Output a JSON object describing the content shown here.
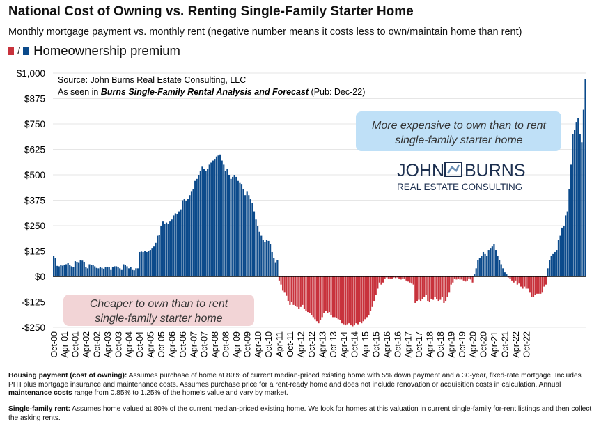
{
  "title": "National Cost of Owning vs. Renting Single-Family Starter Home",
  "subtitle": "Monthly mortgage payment vs. monthly rent (negative number means it costs less to own/maintain home than rent)",
  "legend": {
    "separator": "/",
    "label": "Homeownership premium"
  },
  "source": {
    "line1": "Source: John Burns Real Estate Consulting, LLC",
    "line2_prefix": "As seen in ",
    "line2_pub": "Burns Single-Family Rental Analysis and Forecast",
    "line2_suffix": " (Pub: Dec-22)"
  },
  "logo": {
    "line1a": "JOHN",
    "line1b": "BURNS",
    "line2": "REAL ESTATE CONSULTING"
  },
  "annotations": {
    "expensive": [
      "More expensive to own than to rent",
      "single-family starter home"
    ],
    "cheaper": [
      "Cheaper to own than to rent",
      "single-family starter home"
    ]
  },
  "footnotes": {
    "housing_label": "Housing payment (cost of owning):",
    "housing_text": " Assumes purchase of home at 80% of current median-priced existing home with 5% down payment and a 30-year, fixed-rate mortgage. Includes PITI plus mortgage insurance and maintenance costs. Assumes purchase price for a rent-ready home and does not include renovation or acquisition costs in calculation. Annual ",
    "maint_label": "maintenance costs",
    "maint_text": " range from 0.85% to 1.25% of the home's value and vary by market.",
    "rent_label": "Single-family rent:",
    "rent_text": " Assumes home valued at 80% of the current median-priced existing home. We look for homes at this valuation in current single-family for-rent listings and then collect the asking rents."
  },
  "colors": {
    "positive": "#0b4a8b",
    "negative": "#c8323c",
    "annot_blue": "#bfe0f7",
    "annot_red": "#f2d4d6"
  },
  "chart_data": {
    "type": "bar",
    "start": "Oct-00",
    "end": "Oct-22",
    "frequency": "monthly",
    "ylim": [
      -250,
      1000
    ],
    "yticks": [
      -250,
      -125,
      0,
      125,
      250,
      375,
      500,
      625,
      750,
      875,
      1000
    ],
    "ytick_labels": [
      "-$250",
      "-$125",
      "$0",
      "$125",
      "$250",
      "$375",
      "$500",
      "$625",
      "$750",
      "$875",
      "$1,000"
    ],
    "xtick_labels": [
      "Oct-00",
      "Apr-01",
      "Oct-01",
      "Apr-02",
      "Oct-02",
      "Apr-03",
      "Oct-03",
      "Apr-04",
      "Oct-04",
      "Apr-05",
      "Oct-05",
      "Apr-06",
      "Oct-06",
      "Apr-07",
      "Oct-07",
      "Apr-08",
      "Oct-08",
      "Apr-09",
      "Oct-09",
      "Apr-10",
      "Oct-10",
      "Apr-11",
      "Oct-11",
      "Apr-12",
      "Oct-12",
      "Apr-13",
      "Oct-13",
      "Apr-14",
      "Oct-14",
      "Apr-15",
      "Oct-15",
      "Apr-16",
      "Oct-16",
      "Apr-17",
      "Oct-17",
      "Apr-18",
      "Oct-18",
      "Apr-19",
      "Oct-19",
      "Apr-20",
      "Oct-20",
      "Apr-21",
      "Oct-21",
      "Apr-22",
      "Oct-22"
    ],
    "series": [
      {
        "name": "Homeownership premium",
        "values": [
          100,
          90,
          52,
          50,
          55,
          53,
          58,
          60,
          68,
          55,
          50,
          45,
          75,
          72,
          70,
          80,
          78,
          72,
          45,
          40,
          60,
          58,
          55,
          50,
          42,
          40,
          45,
          42,
          38,
          45,
          48,
          45,
          35,
          48,
          50,
          50,
          45,
          40,
          35,
          60,
          55,
          50,
          40,
          45,
          35,
          30,
          40,
          40,
          120,
          122,
          120,
          125,
          120,
          125,
          130,
          140,
          150,
          165,
          200,
          205,
          250,
          270,
          260,
          265,
          260,
          270,
          280,
          300,
          310,
          305,
          320,
          330,
          375,
          380,
          370,
          380,
          400,
          420,
          430,
          470,
          480,
          500,
          520,
          540,
          530,
          520,
          530,
          550,
          560,
          570,
          575,
          590,
          595,
          600,
          570,
          550,
          520,
          530,
          500,
          480,
          490,
          500,
          490,
          470,
          460,
          455,
          430,
          400,
          420,
          400,
          380,
          360,
          320,
          280,
          250,
          220,
          200,
          180,
          170,
          180,
          175,
          160,
          120,
          90,
          70,
          80,
          -20,
          -40,
          -70,
          -80,
          -95,
          -120,
          -140,
          -125,
          -140,
          -145,
          -150,
          -160,
          -150,
          -140,
          -160,
          -170,
          -175,
          -180,
          -190,
          -200,
          -210,
          -220,
          -230,
          -215,
          -200,
          -180,
          -170,
          -180,
          -175,
          -190,
          -200,
          -200,
          -205,
          -210,
          -215,
          -230,
          -235,
          -240,
          -235,
          -230,
          -240,
          -245,
          -240,
          -230,
          -235,
          -225,
          -230,
          -220,
          -210,
          -200,
          -190,
          -170,
          -150,
          -120,
          -90,
          -60,
          -30,
          -40,
          -30,
          -10,
          -5,
          -10,
          -10,
          -10,
          -5,
          -8,
          -5,
          -10,
          -15,
          -10,
          -10,
          -20,
          -25,
          -30,
          -35,
          -40,
          -130,
          -120,
          -115,
          -120,
          -110,
          -100,
          -90,
          -120,
          -125,
          -110,
          -115,
          -100,
          -110,
          -120,
          -115,
          -100,
          -130,
          -120,
          -100,
          -80,
          -40,
          -30,
          -10,
          -15,
          -10,
          -15,
          -15,
          -20,
          -25,
          -20,
          -10,
          -15,
          -30,
          10,
          40,
          80,
          90,
          100,
          120,
          110,
          100,
          130,
          140,
          150,
          160,
          130,
          100,
          80,
          60,
          40,
          20,
          10,
          -5,
          -10,
          -20,
          -30,
          -20,
          -40,
          -35,
          -50,
          -60,
          -50,
          -60,
          -60,
          -80,
          -100,
          -100,
          -90,
          -85,
          -85,
          -85,
          -80,
          -50,
          -40,
          40,
          80,
          100,
          110,
          120,
          130,
          180,
          200,
          240,
          250,
          300,
          320,
          430,
          550,
          700,
          720,
          760,
          780,
          700,
          660,
          820,
          970
        ]
      }
    ]
  }
}
